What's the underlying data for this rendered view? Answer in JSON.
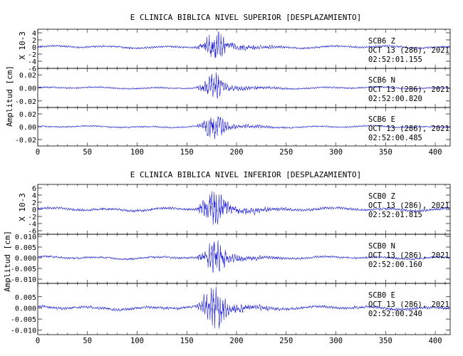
{
  "chart_data": [
    {
      "type": "line",
      "title": "E CLINICA BIBLICA NIVEL SUPERIOR [DESPLAZAMIENTO]",
      "ylabel": "Amplitud [cm]",
      "xlim": [
        0,
        415
      ],
      "xticks": [
        0,
        50,
        100,
        150,
        200,
        250,
        300,
        350,
        400
      ],
      "grid": false,
      "series": [
        {
          "name": "SCB6 Z",
          "ylabel": "X 10-3",
          "ylim": [
            -6,
            5
          ],
          "yticks": [
            "4",
            "2",
            "0",
            "-2",
            "-4",
            "-6"
          ],
          "yticks_values": [
            4,
            2,
            0,
            -2,
            -4,
            -6
          ],
          "amplitude_peak": 5,
          "annotation": [
            "SCB6 Z",
            "OCT 13 (286), 2021",
            "02:52:01.155"
          ]
        },
        {
          "name": "SCB6 N",
          "ylim": [
            -0.03,
            0.03
          ],
          "yticks": [
            "0.02",
            "0.00",
            "-0.02"
          ],
          "yticks_values": [
            0.02,
            0.0,
            -0.02
          ],
          "amplitude_peak": 0.022,
          "annotation": [
            "SCB6 N",
            "OCT 13 (286), 2021",
            "02:52:00.820"
          ]
        },
        {
          "name": "SCB6 E",
          "ylim": [
            -0.03,
            0.03
          ],
          "yticks": [
            "0.02",
            "0.00",
            "-0.02"
          ],
          "yticks_values": [
            0.02,
            0.0,
            -0.02
          ],
          "amplitude_peak": 0.022,
          "annotation": [
            "SCB6 E",
            "OCT 13 (286), 2021",
            "02:52:00.485"
          ]
        }
      ]
    },
    {
      "type": "line",
      "title": "E CLINICA BIBLICA NIVEL INFERIOR [DESPLAZAMIENTO]",
      "ylabel": "Amplitud [cm]",
      "xlim": [
        0,
        415
      ],
      "xticks": [
        0,
        50,
        100,
        150,
        200,
        250,
        300,
        350,
        400
      ],
      "grid": false,
      "series": [
        {
          "name": "SCB0 Z",
          "ylabel": "X 10-3",
          "ylim": [
            -7,
            7
          ],
          "yticks": [
            "6",
            "4",
            "2",
            "0",
            "-2",
            "-4",
            "-6"
          ],
          "yticks_values": [
            6,
            4,
            2,
            0,
            -2,
            -4,
            -6
          ],
          "amplitude_peak": 6.5,
          "annotation": [
            "SCB0 Z",
            "OCT 13 (286), 2021",
            "02:52:01.815"
          ]
        },
        {
          "name": "SCB0 N",
          "ylim": [
            -0.012,
            0.011
          ],
          "yticks": [
            "0.010",
            "0.005",
            "0.000",
            "-0.005",
            "-0.010"
          ],
          "yticks_values": [
            0.01,
            0.005,
            0.0,
            -0.005,
            -0.01
          ],
          "amplitude_peak": 0.009,
          "annotation": [
            "SCB0 N",
            "OCT 13 (286), 2021",
            "02:52:00.160"
          ]
        },
        {
          "name": "SCB0 E",
          "ylim": [
            -0.012,
            0.011
          ],
          "yticks": [
            "0.005",
            "0.000",
            "-0.005",
            "-0.010"
          ],
          "yticks_values": [
            0.005,
            0.0,
            -0.005,
            -0.01
          ],
          "amplitude_peak": 0.011,
          "annotation": [
            "SCB0 E",
            "OCT 13 (286), 2021",
            "02:52:00.240"
          ]
        }
      ]
    }
  ],
  "colors": {
    "trace": "#1f1fd8",
    "axes": "#000000"
  }
}
